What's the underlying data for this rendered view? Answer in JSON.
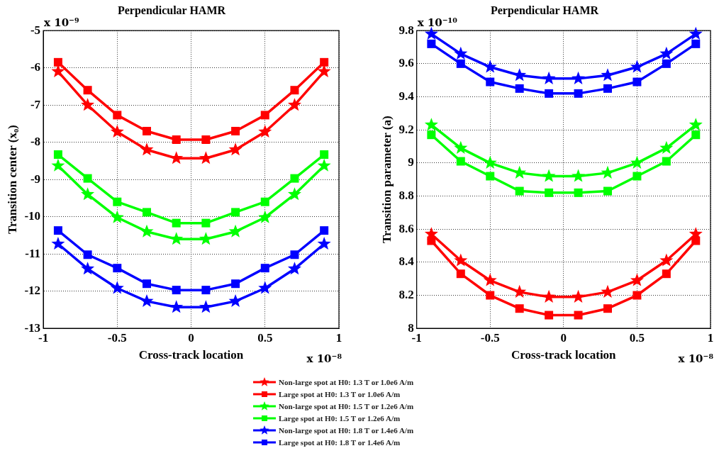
{
  "chart_data": [
    {
      "type": "line",
      "title": "Perpendicular HAMR",
      "xlabel": "Cross-track location",
      "ylabel": "Transition center (x₀)",
      "x": [
        -0.9,
        -0.7,
        -0.5,
        -0.3,
        -0.1,
        0.1,
        0.3,
        0.5,
        0.7,
        0.9
      ],
      "xlim": [
        -1,
        1
      ],
      "xticks": [
        -1,
        -0.5,
        0,
        0.5,
        1
      ],
      "ylim": [
        -13,
        -5
      ],
      "yticks": [
        -13,
        -12,
        -11,
        -10,
        -9,
        -8,
        -7,
        -6,
        -5
      ],
      "grid": true,
      "legend": "bottom",
      "line_style": "solid",
      "annotations": [
        "x 10⁻⁹",
        "x 10⁻⁸"
      ],
      "series": [
        {
          "name": "Non-large spot at H0: 1.3 T or 1.0e6 A/m",
          "color": "#ff0000",
          "marker": "star",
          "values": [
            -6.1,
            -7.0,
            -7.72,
            -8.2,
            -8.43,
            -8.43,
            -8.2,
            -7.72,
            -7.0,
            -6.1
          ]
        },
        {
          "name": "Large spot at H0: 1.3 T or 1.0e6 A/m",
          "color": "#ff0000",
          "marker": "square",
          "values": [
            -5.85,
            -6.6,
            -7.27,
            -7.7,
            -7.93,
            -7.93,
            -7.7,
            -7.27,
            -6.6,
            -5.85
          ]
        },
        {
          "name": "Non-large spot at H0: 1.5 T or 1.2e6 A/m",
          "color": "#00ff00",
          "marker": "star",
          "values": [
            -8.63,
            -9.4,
            -10.02,
            -10.4,
            -10.6,
            -10.6,
            -10.4,
            -10.02,
            -9.4,
            -8.63
          ]
        },
        {
          "name": "Large spot at H0: 1.5 T or 1.2e6 A/m",
          "color": "#00ff00",
          "marker": "square",
          "values": [
            -8.33,
            -8.97,
            -9.6,
            -9.88,
            -10.17,
            -10.17,
            -9.88,
            -9.6,
            -8.97,
            -8.33
          ]
        },
        {
          "name": "Non-large spot at H0: 1.8 T or 1.4e6 A/m",
          "color": "#0000ff",
          "marker": "star",
          "values": [
            -10.73,
            -11.4,
            -11.92,
            -12.27,
            -12.43,
            -12.43,
            -12.27,
            -11.92,
            -11.4,
            -10.73
          ]
        },
        {
          "name": "Large spot at H0: 1.8 T or 1.4e6 A/m",
          "color": "#0000ff",
          "marker": "square",
          "values": [
            -10.37,
            -11.02,
            -11.38,
            -11.8,
            -11.97,
            -11.97,
            -11.8,
            -11.38,
            -11.02,
            -10.37
          ]
        }
      ]
    },
    {
      "type": "line",
      "title": "Perpendicular HAMR",
      "xlabel": "Cross-track location",
      "ylabel": "Transition parameter (a)",
      "x": [
        -0.9,
        -0.7,
        -0.5,
        -0.3,
        -0.1,
        0.1,
        0.3,
        0.5,
        0.7,
        0.9
      ],
      "xlim": [
        -1,
        1
      ],
      "xticks": [
        -1,
        -0.5,
        0,
        0.5,
        1
      ],
      "ylim": [
        8,
        9.8
      ],
      "yticks": [
        8,
        8.2,
        8.4,
        8.6,
        8.8,
        9,
        9.2,
        9.4,
        9.6,
        9.8
      ],
      "grid": true,
      "line_style": "solid",
      "annotations": [
        "x 10⁻¹⁰",
        "x 10⁻⁸"
      ],
      "series": [
        {
          "color": "#ff0000",
          "marker": "star",
          "values": [
            8.57,
            8.41,
            8.29,
            8.22,
            8.19,
            8.19,
            8.22,
            8.29,
            8.41,
            8.57
          ]
        },
        {
          "color": "#ff0000",
          "marker": "square",
          "values": [
            8.53,
            8.33,
            8.2,
            8.12,
            8.08,
            8.08,
            8.12,
            8.2,
            8.33,
            8.53
          ]
        },
        {
          "color": "#00ff00",
          "marker": "star",
          "values": [
            9.23,
            9.09,
            9.0,
            8.94,
            8.92,
            8.92,
            8.94,
            9.0,
            9.09,
            9.23
          ]
        },
        {
          "color": "#00ff00",
          "marker": "square",
          "values": [
            9.17,
            9.01,
            8.92,
            8.83,
            8.82,
            8.82,
            8.83,
            8.92,
            9.01,
            9.17
          ]
        },
        {
          "color": "#0000ff",
          "marker": "star",
          "values": [
            9.78,
            9.66,
            9.58,
            9.53,
            9.51,
            9.51,
            9.53,
            9.58,
            9.66,
            9.78
          ]
        },
        {
          "color": "#0000ff",
          "marker": "square",
          "values": [
            9.72,
            9.6,
            9.49,
            9.45,
            9.42,
            9.42,
            9.45,
            9.49,
            9.6,
            9.72
          ]
        }
      ]
    }
  ]
}
